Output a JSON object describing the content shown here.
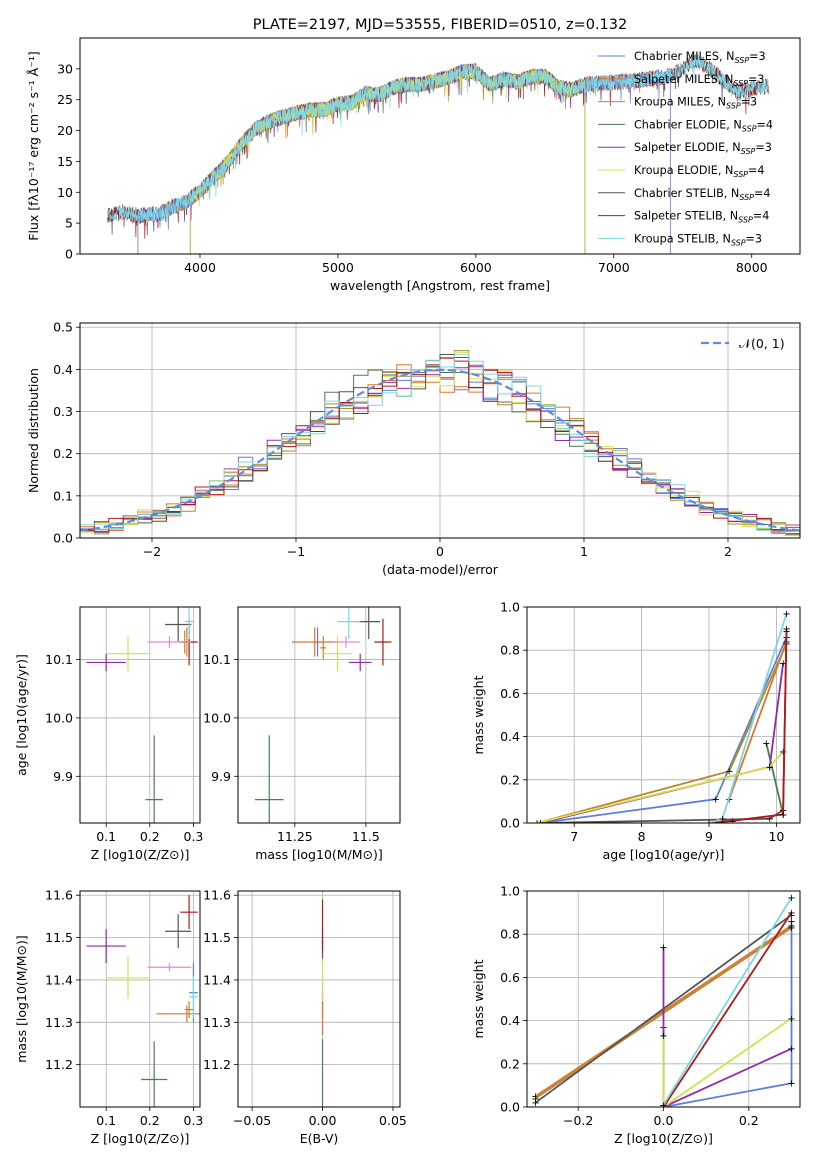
{
  "colors": [
    "#5b7fdb",
    "#e0732b",
    "#b5892c",
    "#4f7b50",
    "#8f2aa8",
    "#d6e04e",
    "#555555",
    "#b01818",
    "#7dd6e6"
  ],
  "chart_data": [
    {
      "id": "spectrum",
      "type": "line",
      "title": "PLATE=2197, MJD=53555, FIBERID=0510, z=0.132",
      "xlabel": "wavelength [Angstrom, rest frame]",
      "ylabel": "Flux [fλ10⁻¹⁷ erg cm⁻² s⁻¹ Å⁻¹]",
      "xlim": [
        3130,
        8350
      ],
      "ylim": [
        0,
        35
      ],
      "xticks": [
        4000,
        5000,
        6000,
        7000,
        8000
      ],
      "yticks": [
        0,
        5,
        10,
        15,
        20,
        25,
        30
      ],
      "grid": false,
      "legend_position": "upper-right",
      "series": [
        {
          "name": "Chabrier MILES, N_SSP=3",
          "range": [
            3550,
            7410
          ]
        },
        {
          "name": "Salpeter MILES, N_SSP=3",
          "range": [
            3550,
            7410
          ]
        },
        {
          "name": "Kroupa MILES, N_SSP=3",
          "range": [
            3930,
            6790
          ]
        },
        {
          "name": "Chabrier ELODIE, N_SSP=4",
          "range": [
            3930,
            6790
          ]
        },
        {
          "name": "Salpeter ELODIE, N_SSP=3",
          "range": [
            3930,
            6790
          ]
        },
        {
          "name": "Kroupa ELODIE, N_SSP=4",
          "range": [
            3930,
            6790
          ]
        },
        {
          "name": "Chabrier STELIB, N_SSP=4",
          "range": [
            3330,
            8120
          ]
        },
        {
          "name": "Salpeter STELIB, N_SSP=4",
          "range": [
            3330,
            8120
          ]
        },
        {
          "name": "Kroupa STELIB, N_SSP=3",
          "range": [
            3330,
            8120
          ]
        }
      ],
      "continuum": [
        [
          3330,
          6.3
        ],
        [
          3450,
          6.8
        ],
        [
          3550,
          6.2
        ],
        [
          3700,
          6.5
        ],
        [
          3800,
          7.6
        ],
        [
          3900,
          8.5
        ],
        [
          4000,
          10.2
        ],
        [
          4100,
          12.5
        ],
        [
          4200,
          14.8
        ],
        [
          4300,
          17.8
        ],
        [
          4400,
          20.2
        ],
        [
          4500,
          21.5
        ],
        [
          4600,
          22.2
        ],
        [
          4700,
          22.8
        ],
        [
          4800,
          23.3
        ],
        [
          4900,
          23.4
        ],
        [
          5000,
          24.3
        ],
        [
          5100,
          24.5
        ],
        [
          5200,
          26.0
        ],
        [
          5300,
          25.8
        ],
        [
          5400,
          27.0
        ],
        [
          5500,
          27.5
        ],
        [
          5600,
          27.4
        ],
        [
          5700,
          28.0
        ],
        [
          5800,
          28.6
        ],
        [
          5900,
          29.5
        ],
        [
          6000,
          29.6
        ],
        [
          6100,
          27.5
        ],
        [
          6200,
          28.3
        ],
        [
          6300,
          27.9
        ],
        [
          6400,
          28.7
        ],
        [
          6500,
          28.8
        ],
        [
          6600,
          27.0
        ],
        [
          6700,
          26.6
        ],
        [
          6800,
          27.5
        ],
        [
          7000,
          27.8
        ],
        [
          7200,
          28.2
        ],
        [
          7400,
          28.8
        ],
        [
          7500,
          30.0
        ],
        [
          7600,
          31.5
        ],
        [
          7700,
          30.0
        ],
        [
          7800,
          28.0
        ],
        [
          7900,
          26.3
        ],
        [
          8000,
          26.8
        ],
        [
          8120,
          27.2
        ]
      ]
    },
    {
      "id": "residuals",
      "type": "histogram",
      "xlabel": "(data-model)/error",
      "ylabel": "Normed distribution",
      "xlim": [
        -2.5,
        2.5
      ],
      "ylim": [
        0,
        0.51
      ],
      "xticks": [
        -2,
        -1,
        0,
        1,
        2
      ],
      "yticks": [
        0.0,
        0.1,
        0.2,
        0.3,
        0.4,
        0.5
      ],
      "grid": true,
      "legend": "𝒩(0, 1)",
      "legend_position": "upper-right",
      "bin_width": 0.1,
      "reference": "standard normal N(0,1)"
    },
    {
      "id": "age-Z",
      "type": "scatter",
      "xlabel": "Z [log10(Z/Z⊙)]",
      "ylabel": "age [log10(age/yr)]",
      "xlim": [
        0.04,
        0.315
      ],
      "ylim": [
        9.82,
        10.19
      ],
      "xticks": [
        0.1,
        0.2,
        0.3
      ],
      "yticks": [
        9.9,
        10.0,
        10.1
      ],
      "grid": true,
      "points": [
        {
          "c": 0,
          "x": 0.29,
          "y": 10.13,
          "xe": 0.01,
          "ye": 0.025
        },
        {
          "c": 1,
          "x": 0.285,
          "y": 10.13,
          "xe": 0.01,
          "ye": 0.025
        },
        {
          "c": 2,
          "x": 0.28,
          "y": 10.13,
          "xe": 0.01,
          "ye": 0.02
        },
        {
          "c": 3,
          "x": 0.21,
          "y": 9.86,
          "xe": 0.02,
          "ye": 0.11
        },
        {
          "c": 4,
          "x": 0.1,
          "y": 10.095,
          "xe": 0.045,
          "ye": 0.015
        },
        {
          "c": 5,
          "x": 0.15,
          "y": 10.11,
          "xe": 0.05,
          "ye": 0.03
        },
        {
          "c": 6,
          "x": 0.265,
          "y": 10.16,
          "xe": 0.03,
          "ye": 0.03
        },
        {
          "c": 7,
          "x": 0.29,
          "y": 10.13,
          "xe": 0.02,
          "ye": 0.04
        },
        {
          "c": 8,
          "x": 0.29,
          "y": 10.165,
          "xe": 0.01,
          "ye": 0.03
        },
        {
          "c": 9,
          "x": 0.245,
          "y": 10.13,
          "xe": 0.05,
          "ye": 0.01
        }
      ]
    },
    {
      "id": "age-mass",
      "type": "scatter",
      "xlabel": "mass [log10(M/M⊙)]",
      "ylabel": "",
      "xlim": [
        11.05,
        11.62
      ],
      "ylim": [
        9.82,
        10.19
      ],
      "xticks": [
        11.25,
        11.5
      ],
      "yticks": [
        9.9,
        10.0,
        10.1
      ],
      "grid": true,
      "points": [
        {
          "c": 0,
          "x": 11.33,
          "y": 10.13,
          "xe": 0.01,
          "ye": 0.025
        },
        {
          "c": 1,
          "x": 11.32,
          "y": 10.13,
          "xe": 0.08,
          "ye": 0.025
        },
        {
          "c": 2,
          "x": 11.35,
          "y": 10.12,
          "xe": 0.01,
          "ye": 0.02
        },
        {
          "c": 3,
          "x": 11.16,
          "y": 9.86,
          "xe": 0.05,
          "ye": 0.11
        },
        {
          "c": 4,
          "x": 11.48,
          "y": 10.095,
          "xe": 0.04,
          "ye": 0.015
        },
        {
          "c": 5,
          "x": 11.4,
          "y": 10.11,
          "xe": 0.05,
          "ye": 0.03
        },
        {
          "c": 6,
          "x": 11.51,
          "y": 10.165,
          "xe": 0.04,
          "ye": 0.03
        },
        {
          "c": 7,
          "x": 11.56,
          "y": 10.13,
          "xe": 0.03,
          "ye": 0.04
        },
        {
          "c": 8,
          "x": 11.44,
          "y": 10.165,
          "xe": 0.04,
          "ye": 0.03
        },
        {
          "c": 9,
          "x": 11.43,
          "y": 10.13,
          "xe": 0.05,
          "ye": 0.01
        }
      ]
    },
    {
      "id": "weight-age",
      "type": "line",
      "xlabel": "age [log10(age/yr)]",
      "ylabel": "mass weight",
      "xlim": [
        6.3,
        10.35
      ],
      "ylim": [
        0,
        1
      ],
      "xticks": [
        7,
        8,
        9,
        10
      ],
      "yticks": [
        0.0,
        0.2,
        0.4,
        0.6,
        0.8,
        1.0
      ],
      "grid": true,
      "series": [
        {
          "c": 0,
          "points": [
            [
              6.5,
              0
            ],
            [
              9.1,
              0.11
            ],
            [
              10.15,
              0.86
            ]
          ]
        },
        {
          "c": 1,
          "points": [
            [
              9.3,
              0.11
            ],
            [
              10.15,
              0.84
            ]
          ]
        },
        {
          "c": 2,
          "points": [
            [
              6.45,
              0
            ],
            [
              9.3,
              0.24
            ],
            [
              10.15,
              0.83
            ]
          ]
        },
        {
          "c": 3,
          "points": [
            [
              9.85,
              0.37
            ],
            [
              10.1,
              0.04
            ]
          ]
        },
        {
          "c": 4,
          "points": [
            [
              6.5,
              0
            ],
            [
              9.9,
              0.26
            ],
            [
              10.1,
              0.74
            ]
          ]
        },
        {
          "c": 5,
          "points": [
            [
              6.45,
              0
            ],
            [
              9.9,
              0.26
            ],
            [
              10.1,
              0.33
            ]
          ]
        },
        {
          "c": 6,
          "points": [
            [
              6.5,
              0
            ],
            [
              9.9,
              0.02
            ],
            [
              10.1,
              0.06
            ],
            [
              10.15,
              0.89
            ]
          ]
        },
        {
          "c": 7,
          "points": [
            [
              9.0,
              0
            ],
            [
              9.35,
              0.01
            ],
            [
              10.1,
              0.04
            ],
            [
              10.15,
              0.9
            ]
          ]
        },
        {
          "c": 8,
          "points": [
            [
              9.0,
              0
            ],
            [
              9.2,
              0.02
            ],
            [
              10.15,
              0.97
            ]
          ]
        }
      ]
    },
    {
      "id": "mass-Z",
      "type": "scatter",
      "xlabel": "Z [log10(Z/Z⊙)]",
      "ylabel": "mass [log10(M/M⊙)]",
      "xlim": [
        0.04,
        0.315
      ],
      "ylim": [
        11.1,
        11.61
      ],
      "xticks": [
        0.1,
        0.2,
        0.3
      ],
      "yticks": [
        11.2,
        11.3,
        11.4,
        11.5,
        11.6
      ],
      "grid": true,
      "points": [
        {
          "c": 0,
          "x": 0.3,
          "y": 11.37,
          "xe": 0.01,
          "ye": 0.07
        },
        {
          "c": 1,
          "x": 0.285,
          "y": 11.32,
          "xe": 0.07,
          "ye": 0.02
        },
        {
          "c": 2,
          "x": 0.29,
          "y": 11.33,
          "xe": 0.01,
          "ye": 0.02
        },
        {
          "c": 3,
          "x": 0.21,
          "y": 11.165,
          "xe": 0.03,
          "ye": 0.09
        },
        {
          "c": 4,
          "x": 0.1,
          "y": 11.48,
          "xe": 0.045,
          "ye": 0.04
        },
        {
          "c": 5,
          "x": 0.15,
          "y": 11.405,
          "xe": 0.05,
          "ye": 0.05
        },
        {
          "c": 6,
          "x": 0.265,
          "y": 11.515,
          "xe": 0.03,
          "ye": 0.04
        },
        {
          "c": 7,
          "x": 0.29,
          "y": 11.56,
          "xe": 0.02,
          "ye": 0.04
        },
        {
          "c": 8,
          "x": 0.3,
          "y": 11.36,
          "xe": 0.01,
          "ye": 0.05
        },
        {
          "c": 9,
          "x": 0.245,
          "y": 11.43,
          "xe": 0.05,
          "ye": 0.01
        }
      ]
    },
    {
      "id": "mass-EBV",
      "type": "scatter",
      "xlabel": "E(B-V)",
      "ylabel": "",
      "xlim": [
        -0.06,
        0.055
      ],
      "ylim": [
        11.1,
        11.61
      ],
      "xticks": [
        -0.05,
        0.0,
        0.05
      ],
      "yticks": [
        11.2,
        11.3,
        11.4,
        11.5,
        11.6
      ],
      "grid": true,
      "points": [
        {
          "c": 0,
          "x": 0,
          "y": 11.36,
          "xe": 0,
          "ye": 0.05
        },
        {
          "c": 1,
          "x": 0,
          "y": 11.32,
          "xe": 0,
          "ye": 0.05
        },
        {
          "c": 3,
          "x": 0,
          "y": 11.17,
          "xe": 0,
          "ye": 0.09
        },
        {
          "c": 4,
          "x": 0,
          "y": 11.48,
          "xe": 0,
          "ye": 0.04
        },
        {
          "c": 5,
          "x": 0,
          "y": 11.4,
          "xe": 0,
          "ye": 0.05
        },
        {
          "c": 7,
          "x": 0,
          "y": 11.53,
          "xe": 0,
          "ye": 0.06
        }
      ]
    },
    {
      "id": "weight-Z",
      "type": "line",
      "xlabel": "Z [log10(Z/Z⊙)]",
      "ylabel": "mass weight",
      "xlim": [
        -0.32,
        0.32
      ],
      "ylim": [
        0,
        1
      ],
      "xticks": [
        -0.2,
        0.0,
        0.2
      ],
      "yticks": [
        0.0,
        0.2,
        0.4,
        0.6,
        0.8,
        1.0
      ],
      "grid": true,
      "series": [
        {
          "c": 0,
          "points": [
            [
              0,
              0
            ],
            [
              0.3,
              0.11
            ],
            [
              0.3,
              0.86
            ]
          ]
        },
        {
          "c": 1,
          "points": [
            [
              -0.3,
              0.05
            ],
            [
              0.3,
              0.84
            ]
          ]
        },
        {
          "c": 2,
          "points": [
            [
              -0.3,
              0.04
            ],
            [
              0.3,
              0.83
            ]
          ]
        },
        {
          "c": 3,
          "points": [
            [
              0,
              0.01
            ],
            [
              0,
              0.37
            ]
          ]
        },
        {
          "c": 4,
          "points": [
            [
              0,
              0
            ],
            [
              0,
              0.74
            ],
            [
              0,
              0
            ],
            [
              0.3,
              0.27
            ]
          ]
        },
        {
          "c": 5,
          "points": [
            [
              0,
              0
            ],
            [
              0,
              0.33
            ],
            [
              0,
              0
            ],
            [
              0.3,
              0.41
            ]
          ]
        },
        {
          "c": 6,
          "points": [
            [
              -0.3,
              0.02
            ],
            [
              0.3,
              0.89
            ]
          ]
        },
        {
          "c": 7,
          "points": [
            [
              0,
              0
            ],
            [
              0.3,
              0.9
            ]
          ]
        },
        {
          "c": 8,
          "points": [
            [
              0,
              0.01
            ],
            [
              0.3,
              0.97
            ]
          ]
        }
      ]
    }
  ]
}
